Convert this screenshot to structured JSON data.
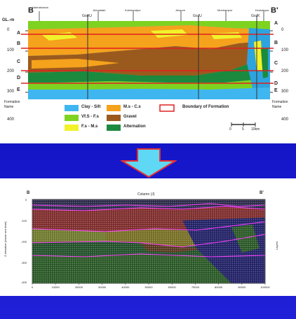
{
  "top": {
    "left_end": "B",
    "right_end": "B'",
    "ylabel": "GL.-m",
    "villages": [
      "Harinakunda",
      "Jhenaidah",
      "Kotchandpur",
      "Jessore",
      "Monirampur",
      "Keshabpur"
    ],
    "wells": [
      "GoHU",
      "GoJU",
      "GoJK"
    ],
    "ticks_left": [
      "0",
      "100",
      "200",
      "300",
      "400"
    ],
    "ticks_right": [
      "0",
      "100",
      "200",
      "300",
      "400"
    ],
    "formations_left": [
      "A",
      "B",
      "C",
      "D",
      "E"
    ],
    "formations_right": [
      "A",
      "B",
      "C",
      "D",
      "E"
    ],
    "formation_name_label": "Formation Name",
    "legend": [
      {
        "label": "Clay - Silt",
        "color": "#3fb6f0"
      },
      {
        "label": "M.s - C.s",
        "color": "#f5a21c"
      },
      {
        "label": "Vf.S - F.s",
        "color": "#7ed321"
      },
      {
        "label": "Gravel",
        "color": "#9b5a1d"
      },
      {
        "label": "F.s - M.s",
        "color": "#f2f22a"
      },
      {
        "label": "Alternation",
        "color": "#1b8a3e"
      }
    ],
    "boundary_label": "Boundary of Formation",
    "scale_labels": [
      "0",
      "5",
      "10km"
    ]
  },
  "bottom": {
    "left_end": "B",
    "right_end": "B'",
    "title": "Column (J)",
    "ylabel": "Z-elevation (mean sea level)",
    "right_label": "Layers",
    "yticks": [
      "0",
      "-100",
      "-200",
      "-300",
      "-400"
    ],
    "xticks": [
      "0",
      "10000",
      "20000",
      "30000",
      "40000",
      "50000",
      "60000",
      "70000",
      "80000",
      "90000",
      "100000"
    ]
  },
  "colors": {
    "background": "#1515c8",
    "arrow_fill": "#5fd8f5",
    "arrow_stroke": "#e83030",
    "boundary": "#e02020",
    "grid_line": "#ff40ff"
  }
}
